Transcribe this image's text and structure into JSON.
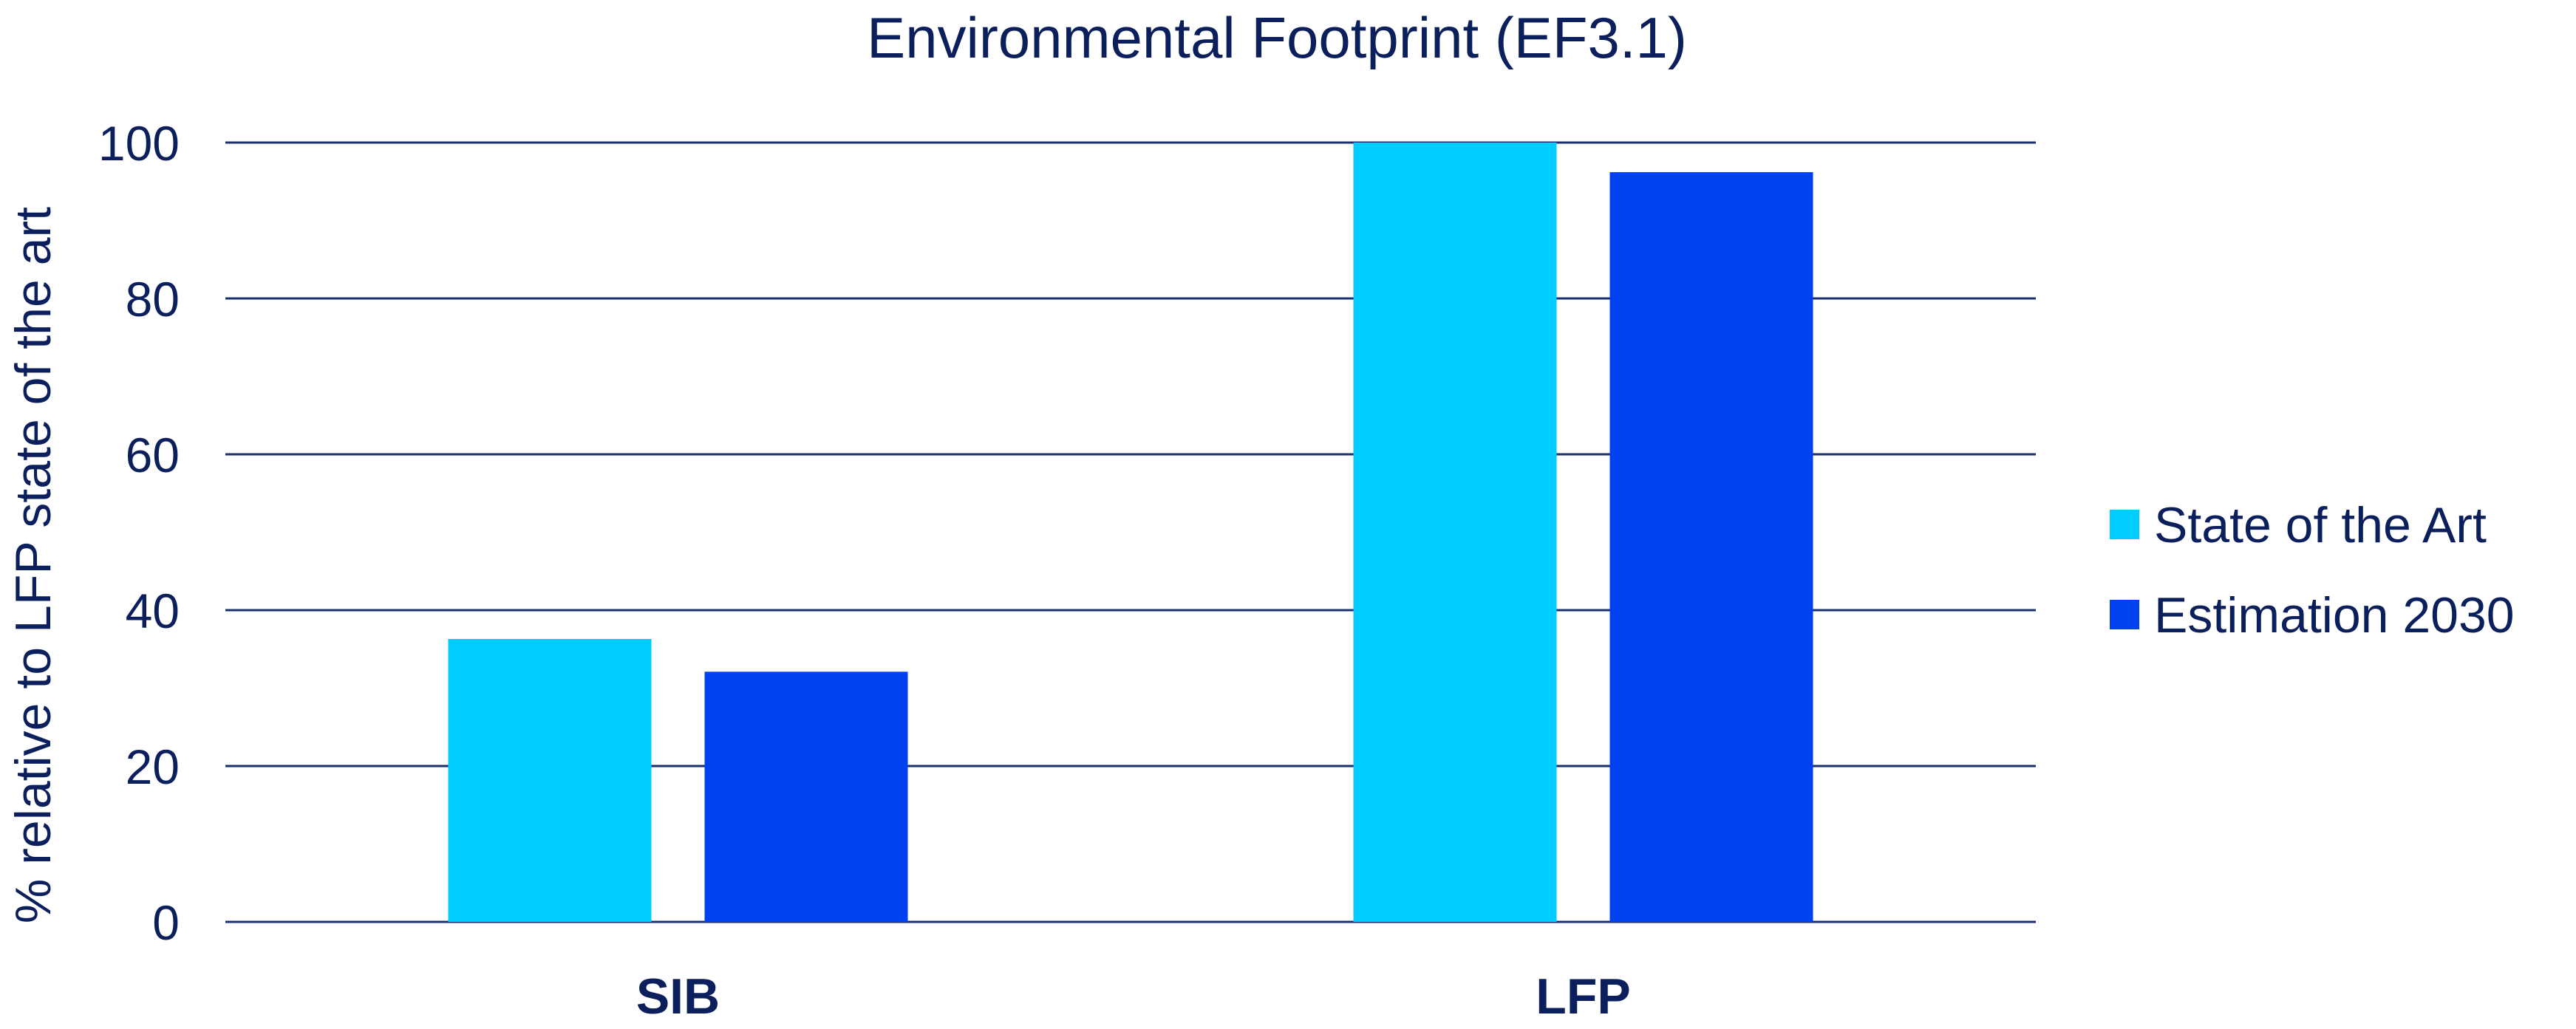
{
  "chart_data": {
    "type": "bar",
    "title": "Environmental Footprint (EF3.1)",
    "xlabel": "",
    "ylabel": "% relative to LFP state of the art",
    "categories": [
      "SIB",
      "LFP"
    ],
    "series": [
      {
        "name": "State of the Art",
        "values": [
          36.3,
          100
        ],
        "color": "#00CCFF"
      },
      {
        "name": "Estimation 2030",
        "values": [
          32.1,
          96.2
        ],
        "color": "#0041F0"
      }
    ],
    "ylim": [
      0,
      100
    ],
    "yticks": [
      0,
      20,
      40,
      60,
      80,
      100
    ],
    "grid": true,
    "legend_position": "right",
    "text_color": "#0B1F5C",
    "grid_color": "#1A2F6E"
  }
}
